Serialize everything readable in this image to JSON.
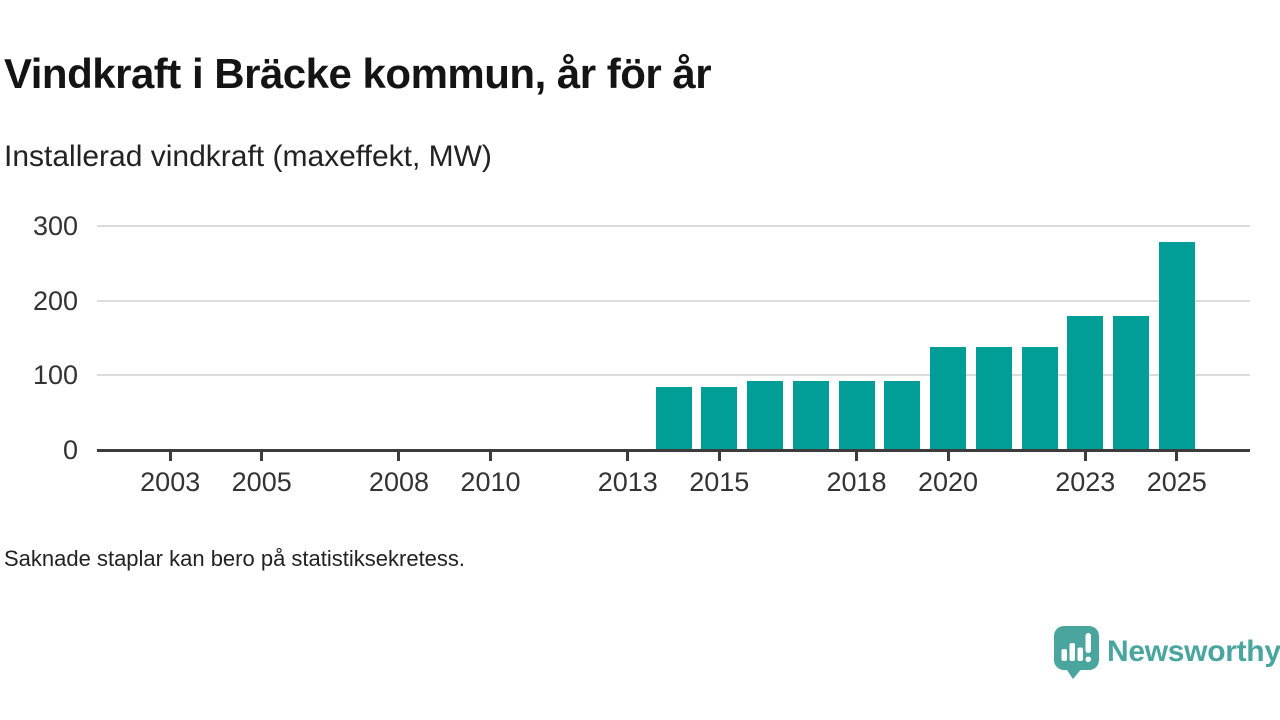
{
  "chart_data": {
    "type": "bar",
    "title": "Vindkraft i Bräcke kommun, år för år",
    "subtitle": "Installerad vindkraft (maxeffekt, MW)",
    "ylabel": "MW",
    "categories": [
      2014,
      2015,
      2016,
      2017,
      2018,
      2019,
      2020,
      2021,
      2022,
      2023,
      2024,
      2025
    ],
    "values": [
      85,
      85,
      92,
      92,
      92,
      92,
      138,
      138,
      138,
      180,
      180,
      278
    ],
    "xticks": [
      2003,
      2005,
      2008,
      2010,
      2013,
      2015,
      2018,
      2020,
      2023,
      2025
    ],
    "yticks": [
      0,
      100,
      200,
      300
    ],
    "xlim": [
      2001.4,
      2026.6
    ],
    "ylim": [
      0,
      300
    ],
    "grid": true,
    "legend": false,
    "bar_color": "#009e96"
  },
  "footer": {
    "note": "Saknade staplar kan bero på statistiksekretess."
  },
  "branding": {
    "name": "Newsworthy",
    "logo_icon": "speech-bubble-bar-chart-icon",
    "color": "#4aa59e"
  },
  "colors": {
    "bar": "#009e96",
    "axis": "#3c3c3c",
    "grid": "#dcdcdc",
    "title": "#141414",
    "text": "#333333"
  }
}
